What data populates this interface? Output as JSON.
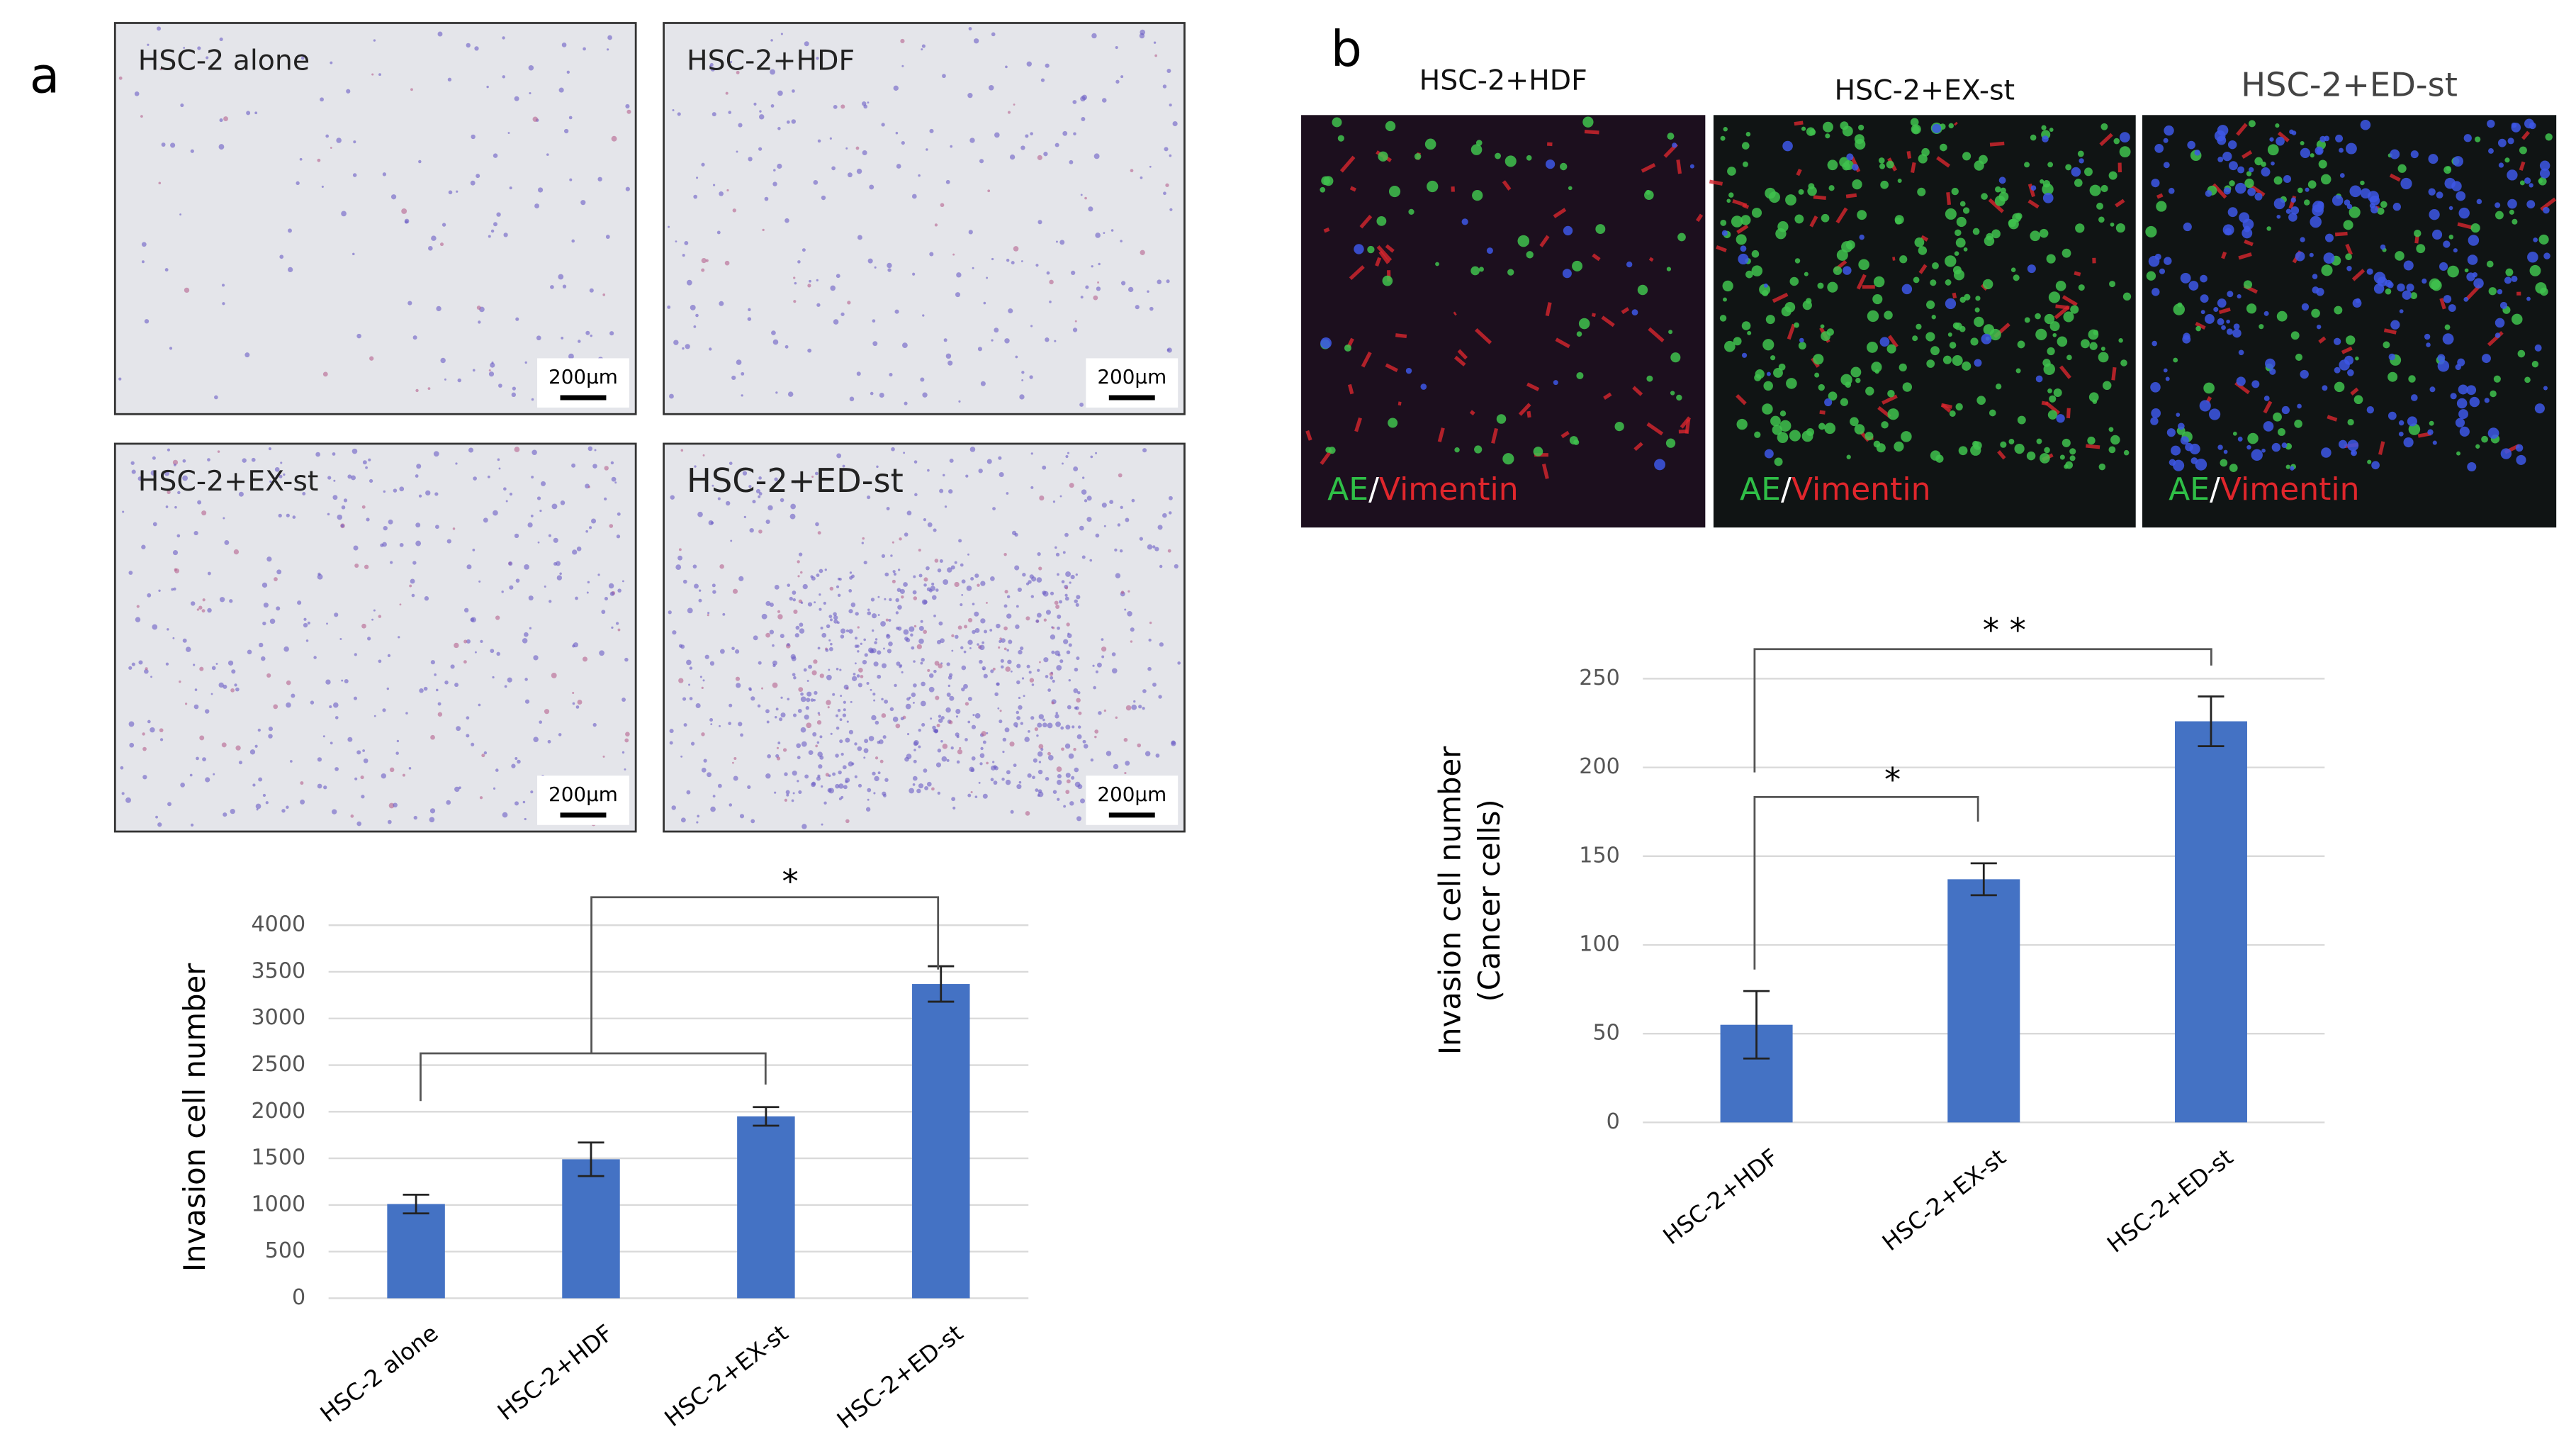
{
  "panels": {
    "a": "a",
    "b": "b"
  },
  "micrographs_a": [
    {
      "label": "HSC-2 alone",
      "scale": "200µm"
    },
    {
      "label": "HSC-2+HDF",
      "scale": "200µm"
    },
    {
      "label": "HSC-2+EX-st",
      "scale": "200µm"
    },
    {
      "label": "HSC-2+ED-st",
      "scale": "200µm"
    }
  ],
  "micrographs_b": [
    {
      "label": "HSC-2+HDF",
      "stain": [
        "AE",
        "/",
        "Vimentin"
      ]
    },
    {
      "label": "HSC-2+EX-st",
      "stain": [
        "AE",
        "/",
        "Vimentin"
      ]
    },
    {
      "label": "HSC-2+ED-st",
      "stain": [
        "AE",
        "/",
        "Vimentin"
      ]
    }
  ],
  "chart_data": [
    {
      "type": "bar",
      "y_label": "Invasion cell number",
      "categories": [
        "HSC-2 alone",
        "HSC-2+HDF",
        "HSC-2+EX-st",
        "HSC-2+ED-st"
      ],
      "series": [
        {
          "color": "#4472c4",
          "values": [
            1010,
            1490,
            1950,
            3370
          ],
          "errors": [
            100,
            180,
            100,
            190
          ]
        }
      ],
      "ylim": [
        0,
        4000
      ],
      "yticks": [
        0,
        500,
        1000,
        1500,
        2000,
        2500,
        3000,
        3500,
        4000
      ],
      "grid": true,
      "annotations": [
        "*"
      ]
    },
    {
      "type": "bar",
      "y_label": [
        "Invasion cell number",
        "(Cancer cells)"
      ],
      "categories": [
        "HSC-2+HDF",
        "HSC-2+EX-st",
        "HSC-2+ED-st"
      ],
      "series": [
        {
          "color": "#4472c4",
          "values": [
            55,
            137,
            226
          ],
          "errors": [
            19,
            9,
            14
          ]
        }
      ],
      "ylim": [
        0,
        250
      ],
      "yticks": [
        0,
        50,
        100,
        150,
        200,
        250
      ],
      "grid": true,
      "annotations": [
        "*",
        "* *"
      ]
    }
  ]
}
